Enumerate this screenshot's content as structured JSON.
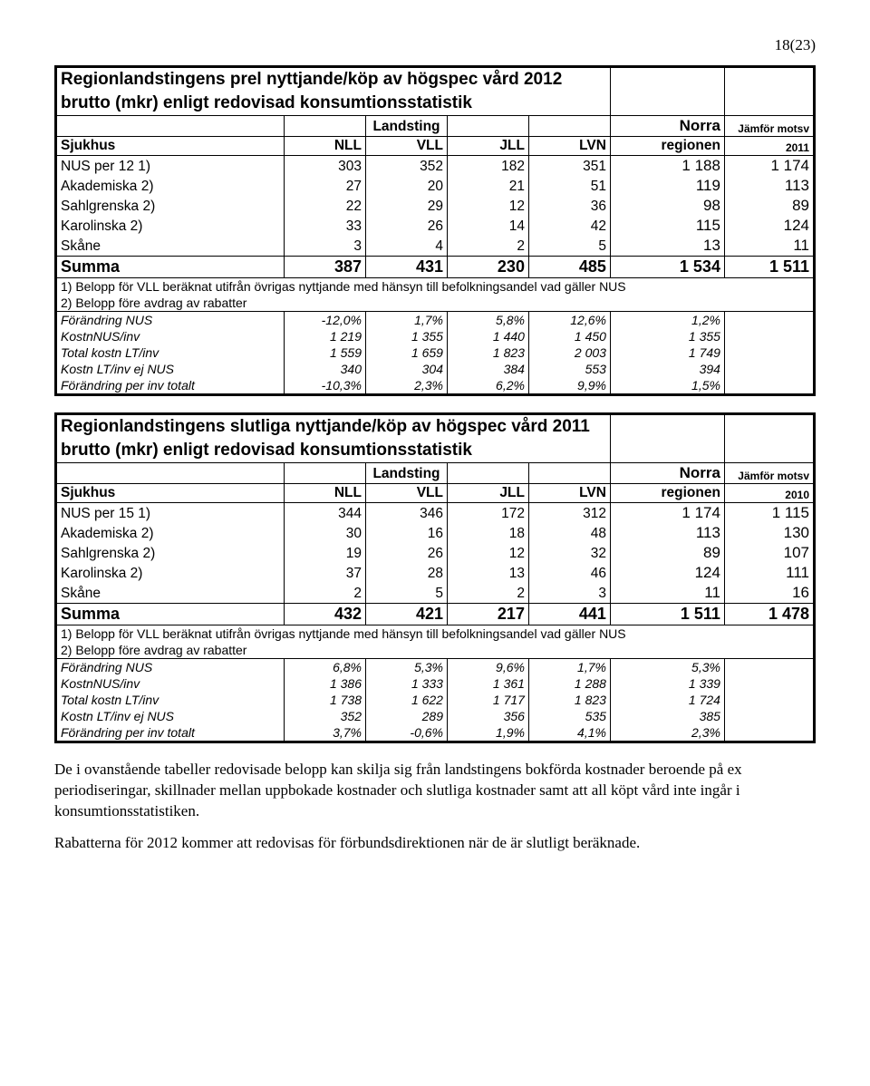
{
  "page_number": "18(23)",
  "table1": {
    "title_l1": "Regionlandstingens prel nyttjande/köp av högspec vård 2012",
    "title_l2": "brutto (mkr) enligt redovisad konsumtionsstatistik",
    "hdr_landsting": "Landsting",
    "hdr_norra": "Norra",
    "hdr_jamfor": "Jämför motsv",
    "cols": [
      "Sjukhus",
      "NLL",
      "VLL",
      "JLL",
      "LVN",
      "regionen",
      "2011"
    ],
    "rows": [
      {
        "label": "NUS per 12 1)",
        "v": [
          "303",
          "352",
          "182",
          "351",
          "1 188",
          "1 174"
        ]
      },
      {
        "label": "Akademiska 2)",
        "v": [
          "27",
          "20",
          "21",
          "51",
          "119",
          "113"
        ]
      },
      {
        "label": "Sahlgrenska 2)",
        "v": [
          "22",
          "29",
          "12",
          "36",
          "98",
          "89"
        ]
      },
      {
        "label": "Karolinska 2)",
        "v": [
          "33",
          "26",
          "14",
          "42",
          "115",
          "124"
        ]
      },
      {
        "label": "Skåne",
        "v": [
          "3",
          "4",
          "2",
          "5",
          "13",
          "11"
        ]
      }
    ],
    "sum": {
      "label": "Summa",
      "v": [
        "387",
        "431",
        "230",
        "485",
        "1 534",
        "1 511"
      ]
    },
    "note1": "1) Belopp för VLL beräknat utifrån övrigas nyttjande med hänsyn till befolkningsandel vad gäller NUS",
    "note2": "2) Belopp före avdrag av rabatter",
    "ital": [
      {
        "label": "Förändring NUS",
        "v": [
          "-12,0%",
          "1,7%",
          "5,8%",
          "12,6%",
          "1,2%",
          ""
        ]
      },
      {
        "label": "KostnNUS/inv",
        "v": [
          "1 219",
          "1 355",
          "1 440",
          "1 450",
          "1 355",
          ""
        ]
      },
      {
        "label": "Total kostn LT/inv",
        "v": [
          "1 559",
          "1 659",
          "1 823",
          "2 003",
          "1 749",
          ""
        ]
      },
      {
        "label": "Kostn LT/inv ej NUS",
        "v": [
          "340",
          "304",
          "384",
          "553",
          "394",
          ""
        ]
      },
      {
        "label": "Förändring per inv totalt",
        "v": [
          "-10,3%",
          "2,3%",
          "6,2%",
          "9,9%",
          "1,5%",
          ""
        ]
      }
    ]
  },
  "table2": {
    "title_l1": "Regionlandstingens slutliga nyttjande/köp av högspec vård 2011",
    "title_l2": "brutto (mkr) enligt redovisad konsumtionsstatistik",
    "hdr_landsting": "Landsting",
    "hdr_norra": "Norra",
    "hdr_jamfor": "Jämför motsv",
    "cols": [
      "Sjukhus",
      "NLL",
      "VLL",
      "JLL",
      "LVN",
      "regionen",
      "2010"
    ],
    "rows": [
      {
        "label": "NUS per 15 1)",
        "v": [
          "344",
          "346",
          "172",
          "312",
          "1 174",
          "1 115"
        ]
      },
      {
        "label": "Akademiska 2)",
        "v": [
          "30",
          "16",
          "18",
          "48",
          "113",
          "130"
        ]
      },
      {
        "label": "Sahlgrenska 2)",
        "v": [
          "19",
          "26",
          "12",
          "32",
          "89",
          "107"
        ]
      },
      {
        "label": "Karolinska 2)",
        "v": [
          "37",
          "28",
          "13",
          "46",
          "124",
          "111"
        ]
      },
      {
        "label": "Skåne",
        "v": [
          "2",
          "5",
          "2",
          "3",
          "11",
          "16"
        ]
      }
    ],
    "sum": {
      "label": "Summa",
      "v": [
        "432",
        "421",
        "217",
        "441",
        "1 511",
        "1 478"
      ]
    },
    "note1": "1) Belopp för VLL beräknat utifrån övrigas nyttjande med hänsyn till befolkningsandel vad gäller NUS",
    "note2": "2) Belopp före avdrag av rabatter",
    "ital": [
      {
        "label": "Förändring NUS",
        "v": [
          "6,8%",
          "5,3%",
          "9,6%",
          "1,7%",
          "5,3%",
          ""
        ]
      },
      {
        "label": "KostnNUS/inv",
        "v": [
          "1 386",
          "1 333",
          "1 361",
          "1 288",
          "1 339",
          ""
        ]
      },
      {
        "label": "Total kostn LT/inv",
        "v": [
          "1 738",
          "1 622",
          "1 717",
          "1 823",
          "1 724",
          ""
        ]
      },
      {
        "label": "Kostn LT/inv ej NUS",
        "v": [
          "352",
          "289",
          "356",
          "535",
          "385",
          ""
        ]
      },
      {
        "label": "Förändring per inv totalt",
        "v": [
          "3,7%",
          "-0,6%",
          "1,9%",
          "4,1%",
          "2,3%",
          ""
        ]
      }
    ]
  },
  "para1": "De i ovanstående tabeller redovisade belopp kan skilja sig från landstingens bokförda kostnader beroende på ex periodiseringar, skillnader mellan uppbokade kostnader och slutliga kostnader samt att all köpt vård inte ingår i konsumtionsstatistiken.",
  "para2": "Rabatterna för 2012 kommer att redovisas för förbundsdirektionen när de är slutligt beräknade."
}
